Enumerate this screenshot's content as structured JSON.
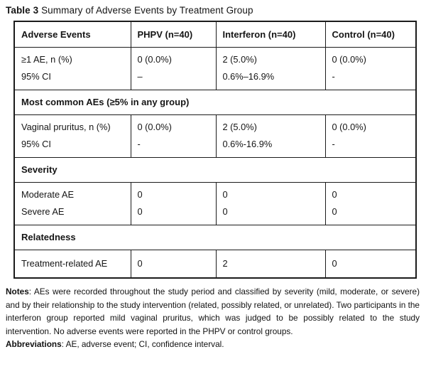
{
  "title": {
    "label": "Table 3",
    "text": " Summary of Adverse Events by Treatment Group"
  },
  "table": {
    "columns": [
      "Adverse Events",
      "PHPV (n=40)",
      "Interferon (n=40)",
      "Control (n=40)"
    ],
    "sections": [
      {
        "rows": [
          {
            "cells": [
              [
                "≥1 AE, n (%)",
                "95% CI"
              ],
              [
                "0 (0.0%)",
                "–"
              ],
              [
                "2 (5.0%)",
                "0.6%–16.9%"
              ],
              [
                "0 (0.0%)",
                "-"
              ]
            ]
          }
        ]
      },
      {
        "header": "Most common AEs (≥5% in any group)",
        "rows": [
          {
            "cells": [
              [
                "Vaginal pruritus, n (%)",
                "95% CI"
              ],
              [
                "0 (0.0%)",
                "-"
              ],
              [
                "2 (5.0%)",
                "0.6%-16.9%"
              ],
              [
                "0 (0.0%)",
                "-"
              ]
            ]
          }
        ]
      },
      {
        "header": "Severity",
        "rows": [
          {
            "cells": [
              [
                "Moderate AE",
                "Severe AE"
              ],
              [
                "0",
                "0"
              ],
              [
                "0",
                "0"
              ],
              [
                "0",
                "0"
              ]
            ]
          }
        ]
      },
      {
        "header": "Relatedness",
        "rows": [
          {
            "cells": [
              [
                "Treatment-related AE"
              ],
              [
                "0"
              ],
              [
                "2"
              ],
              [
                "0"
              ]
            ]
          }
        ]
      }
    ]
  },
  "notes": {
    "label": "Notes",
    "text": ": AEs were recorded throughout the study period and classified by severity (mild, moderate, or severe) and by their relationship to the study intervention (related, possibly related, or unrelated). Two participants in the interferon group reported mild vaginal pruritus, which was judged to be possibly related to the study intervention. No adverse events were reported in the PHPV or control groups.",
    "abbr_label": "Abbreviations",
    "abbr_text": ": AE, adverse event; CI, confidence interval."
  }
}
